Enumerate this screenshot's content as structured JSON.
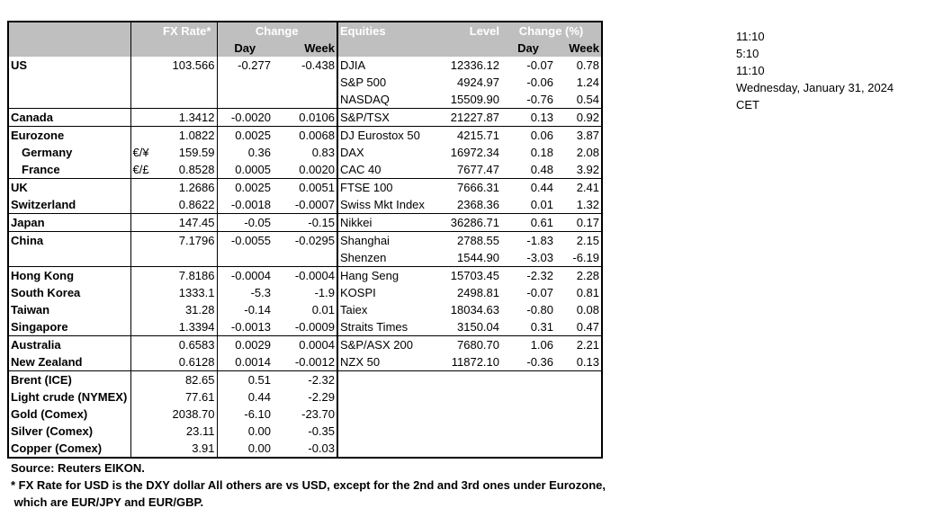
{
  "headers": {
    "fx_rate": "FX Rate*",
    "change": "Change",
    "day": "Day",
    "week": "Week",
    "equities": "Equities",
    "level": "Level",
    "change_pct": "Change (%)",
    "eq_day": "Day",
    "eq_week": "Week"
  },
  "rows": [
    {
      "name": "US",
      "cur": "",
      "fx": "103.566",
      "fx_day": "-0.277",
      "fx_week": "-0.438",
      "eq": "DJIA",
      "level": "12336.12",
      "eq_day": "-0.07",
      "eq_week": "0.78"
    },
    {
      "name": "",
      "cur": "",
      "fx": "",
      "fx_day": "",
      "fx_week": "",
      "eq": "S&P 500",
      "level": "4924.97",
      "eq_day": "-0.06",
      "eq_week": "1.24"
    },
    {
      "name": "",
      "cur": "",
      "fx": "",
      "fx_day": "",
      "fx_week": "",
      "eq": "NASDAQ",
      "level": "15509.90",
      "eq_day": "-0.76",
      "eq_week": "0.54"
    },
    {
      "name": "Canada",
      "cur": "",
      "fx": "1.3412",
      "fx_day": "-0.0020",
      "fx_week": "0.0106",
      "eq": "S&P/TSX",
      "level": "21227.87",
      "eq_day": "0.13",
      "eq_week": "0.92"
    },
    {
      "name": "Eurozone",
      "cur": "",
      "fx": "1.0822",
      "fx_day": "0.0025",
      "fx_week": "0.0068",
      "eq": "DJ Eurostox 50",
      "level": "4215.71",
      "eq_day": "0.06",
      "eq_week": "3.87"
    },
    {
      "name": "Germany",
      "cur": "€/¥",
      "fx": "159.59",
      "fx_day": "0.36",
      "fx_week": "0.83",
      "eq": "DAX",
      "level": "16972.34",
      "eq_day": "0.18",
      "eq_week": "2.08"
    },
    {
      "name": "France",
      "cur": "€/£",
      "fx": "0.8528",
      "fx_day": "0.0005",
      "fx_week": "0.0020",
      "eq": "CAC 40",
      "level": "7677.47",
      "eq_day": "0.48",
      "eq_week": "3.92"
    },
    {
      "name": "UK",
      "cur": "",
      "fx": "1.2686",
      "fx_day": "0.0025",
      "fx_week": "0.0051",
      "eq": "FTSE 100",
      "level": "7666.31",
      "eq_day": "0.44",
      "eq_week": "2.41"
    },
    {
      "name": "Switzerland",
      "cur": "",
      "fx": "0.8622",
      "fx_day": "-0.0018",
      "fx_week": "-0.0007",
      "eq": "Swiss Mkt Index",
      "level": "2368.36",
      "eq_day": "0.01",
      "eq_week": "1.32"
    },
    {
      "name": "Japan",
      "cur": "",
      "fx": "147.45",
      "fx_day": "-0.05",
      "fx_week": "-0.15",
      "eq": "Nikkei",
      "level": "36286.71",
      "eq_day": "0.61",
      "eq_week": "0.17"
    },
    {
      "name": "China",
      "cur": "",
      "fx": "7.1796",
      "fx_day": "-0.0055",
      "fx_week": "-0.0295",
      "eq": "Shanghai",
      "level": "2788.55",
      "eq_day": "-1.83",
      "eq_week": "2.15"
    },
    {
      "name": "",
      "cur": "",
      "fx": "",
      "fx_day": "",
      "fx_week": "",
      "eq": "Shenzen",
      "level": "1544.90",
      "eq_day": "-3.03",
      "eq_week": "-6.19"
    },
    {
      "name": "Hong Kong",
      "cur": "",
      "fx": "7.8186",
      "fx_day": "-0.0004",
      "fx_week": "-0.0004",
      "eq": "Hang Seng",
      "level": "15703.45",
      "eq_day": "-2.32",
      "eq_week": "2.28"
    },
    {
      "name": "South Korea",
      "cur": "",
      "fx": "1333.1",
      "fx_day": "-5.3",
      "fx_week": "-1.9",
      "eq": "KOSPI",
      "level": "2498.81",
      "eq_day": "-0.07",
      "eq_week": "0.81"
    },
    {
      "name": "Taiwan",
      "cur": "",
      "fx": "31.28",
      "fx_day": "-0.14",
      "fx_week": "0.01",
      "eq": "Taiex",
      "level": "18034.63",
      "eq_day": "-0.80",
      "eq_week": "0.08"
    },
    {
      "name": "Singapore",
      "cur": "",
      "fx": "1.3394",
      "fx_day": "-0.0013",
      "fx_week": "-0.0009",
      "eq": "Straits Times",
      "level": "3150.04",
      "eq_day": "0.31",
      "eq_week": "0.47"
    },
    {
      "name": "Australia",
      "cur": "",
      "fx": "0.6583",
      "fx_day": "0.0029",
      "fx_week": "0.0004",
      "eq": "S&P/ASX  200",
      "level": "7680.70",
      "eq_day": "1.06",
      "eq_week": "2.21"
    },
    {
      "name": "New Zealand",
      "cur": "",
      "fx": "0.6128",
      "fx_day": "0.0014",
      "fx_week": "-0.0012",
      "eq": "NZX 50",
      "level": "11872.10",
      "eq_day": "-0.36",
      "eq_week": "0.13"
    },
    {
      "name": "Brent (ICE)",
      "cur": "",
      "fx": "82.65",
      "fx_day": "0.51",
      "fx_week": "-2.32",
      "eq": "",
      "level": "",
      "eq_day": "",
      "eq_week": ""
    },
    {
      "name": "Light crude (NYMEX)",
      "cur": "",
      "fx": "77.61",
      "fx_day": "0.44",
      "fx_week": "-2.29",
      "eq": "",
      "level": "",
      "eq_day": "",
      "eq_week": ""
    },
    {
      "name": "Gold (Comex)",
      "cur": "",
      "fx": "2038.70",
      "fx_day": "-6.10",
      "fx_week": "-23.70",
      "eq": "",
      "level": "",
      "eq_day": "",
      "eq_week": ""
    },
    {
      "name": "Silver (Comex)",
      "cur": "",
      "fx": "23.11",
      "fx_day": "0.00",
      "fx_week": "-0.35",
      "eq": "",
      "level": "",
      "eq_day": "",
      "eq_week": ""
    },
    {
      "name": "Copper (Comex)",
      "cur": "",
      "fx": "3.91",
      "fx_day": "0.00",
      "fx_week": "-0.03",
      "eq": "",
      "level": "",
      "eq_day": "",
      "eq_week": ""
    }
  ],
  "side": [
    "11:10",
    "5:10",
    "11:10",
    "Wednesday, January 31, 2024",
    "CET"
  ],
  "notes": {
    "source": "Source:  Reuters EIKON.",
    "footnote1": "* FX Rate for USD is the DXY dollar  All others are vs USD, except for the 2nd and 3rd ones under Eurozone,",
    "footnote2": " which are EUR/JPY and EUR/GBP."
  }
}
